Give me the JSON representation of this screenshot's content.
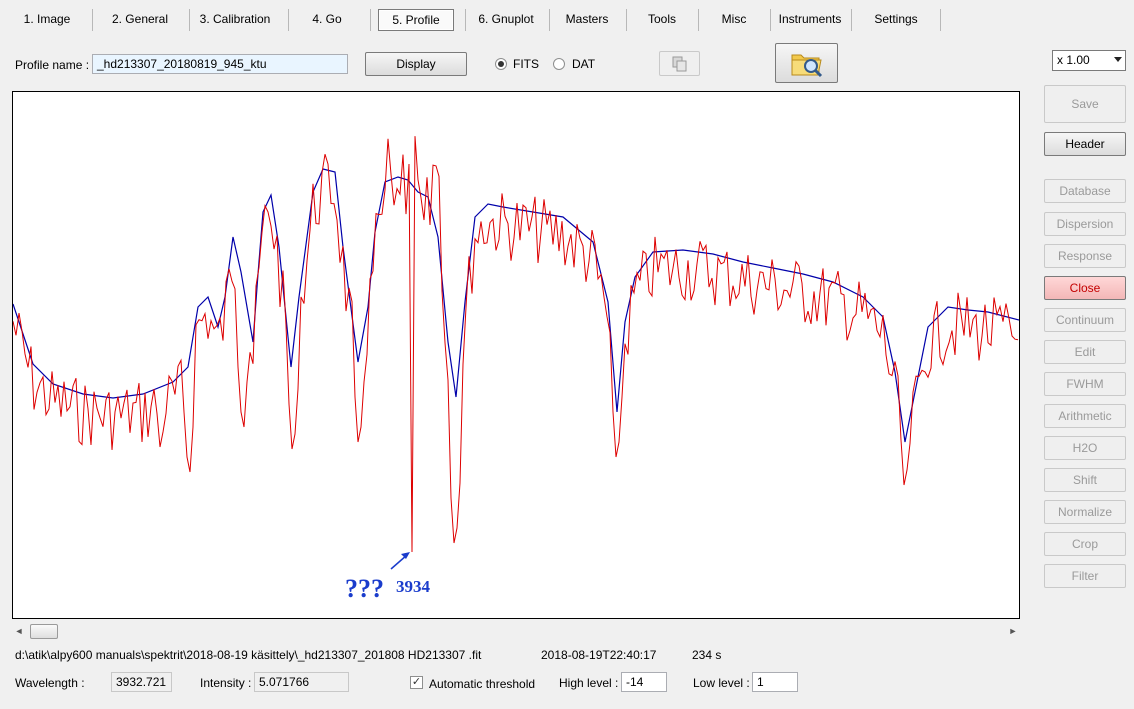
{
  "tabs": [
    "1. Image",
    "2. General",
    "3. Calibration",
    "4. Go",
    "5. Profile",
    "6. Gnuplot",
    "Masters",
    "Tools",
    "Misc",
    "Instruments",
    "Settings"
  ],
  "active_tab": "5. Profile",
  "profile": {
    "name_label": "Profile name :",
    "name_value": "_hd213307_20180819_945_ktu",
    "display_label": "Display",
    "format_options": [
      "FITS",
      "DAT"
    ],
    "format_selected": "FITS"
  },
  "zoom": {
    "value": "x 1.00"
  },
  "side_buttons": {
    "save": "Save",
    "header": "Header",
    "database": "Database",
    "dispersion": "Dispersion",
    "response": "Response",
    "close": "Close",
    "continuum": "Continuum",
    "edit": "Edit",
    "fwhm": "FWHM",
    "arithmetic": "Arithmetic",
    "h2o": "H2O",
    "shift": "Shift",
    "normalize": "Normalize",
    "crop": "Crop",
    "filter": "Filter"
  },
  "annotation": {
    "question": "???",
    "value": "3934"
  },
  "status": {
    "file_path": "d:\\atik\\alpy600 manuals\\spektrit\\2018-08-19 käsittely\\_hd213307_201808 HD213307 .fit",
    "datetime": "2018-08-19T22:40:17",
    "exposure": "234 s",
    "wavelength_label": "Wavelength :",
    "wavelength_value": "3932.721",
    "intensity_label": "Intensity :",
    "intensity_value": "5.071766",
    "auto_threshold_label": "Automatic threshold",
    "auto_threshold_checked": true,
    "high_level_label": "High level :",
    "high_level_value": "-14",
    "low_level_label": "Low level :",
    "low_level_value": "1"
  },
  "colors": {
    "spectrum": "#dd0000",
    "reference": "#0000aa",
    "annotation": "#1a3ccc"
  }
}
